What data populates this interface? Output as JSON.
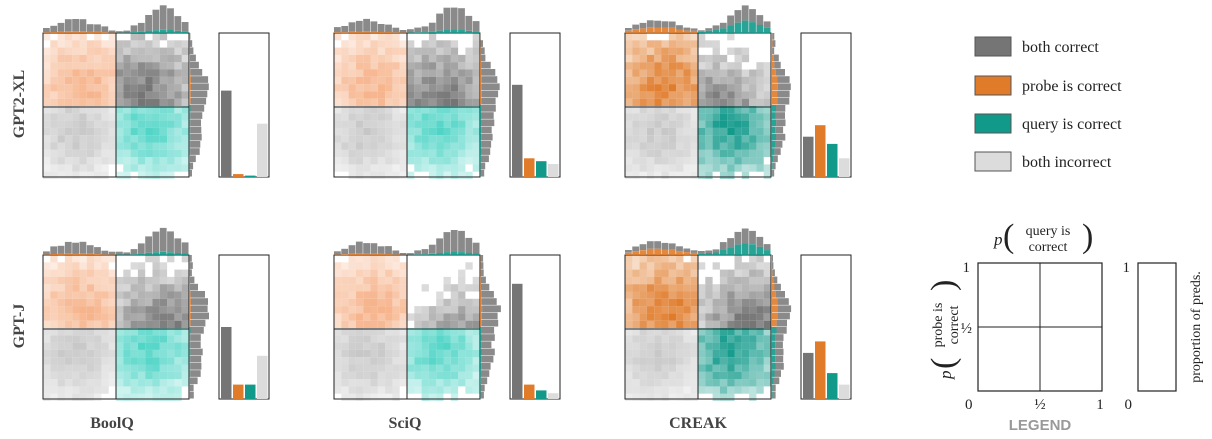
{
  "colors": {
    "both_correct": "#757575",
    "probe_correct": "#e07b2a",
    "query_correct": "#11998a",
    "both_incorrect": "#dcdcdc",
    "probe_light": "#f6b48c",
    "query_light": "#4fd4c6",
    "gray_light": "#c6c6c6"
  },
  "legend": {
    "items": [
      {
        "label": "both correct",
        "color": "#757575"
      },
      {
        "label": "probe is correct",
        "color": "#e07b2a"
      },
      {
        "label": "query is correct",
        "color": "#11998a"
      },
      {
        "label": "both incorrect",
        "color": "#dcdcdc"
      }
    ],
    "title": "LEGEND",
    "xaxis_label_p": "p",
    "xaxis_label_line1": "query is",
    "xaxis_label_line2": "correct",
    "yaxis_label_p": "p",
    "yaxis_label_line1": "probe is",
    "yaxis_label_line2": "correct",
    "bar_axis_label": "proportion of preds.",
    "tick_0_x": "0",
    "tick_half_x": "½",
    "tick_1_x": "1",
    "tick_half_y": "½",
    "tick_1_y": "1",
    "bar_tick_0": "0",
    "bar_tick_1": "1"
  },
  "chart_data": [
    {
      "type": "bar",
      "row": "GPT2-XL",
      "dataset": "BoolQ",
      "categories": [
        "both correct",
        "probe is correct",
        "query is correct",
        "both incorrect"
      ],
      "values": [
        0.6,
        0.02,
        0.01,
        0.37
      ],
      "ylim": [
        0,
        1
      ]
    },
    {
      "type": "bar",
      "row": "GPT2-XL",
      "dataset": "SciQ",
      "categories": [
        "both correct",
        "probe is correct",
        "query is correct",
        "both incorrect"
      ],
      "values": [
        0.64,
        0.13,
        0.11,
        0.09
      ],
      "ylim": [
        0,
        1
      ]
    },
    {
      "type": "bar",
      "row": "GPT2-XL",
      "dataset": "CREAK",
      "categories": [
        "both correct",
        "probe is correct",
        "query is correct",
        "both incorrect"
      ],
      "values": [
        0.28,
        0.36,
        0.23,
        0.13
      ],
      "ylim": [
        0,
        1
      ]
    },
    {
      "type": "bar",
      "row": "GPT-J",
      "dataset": "BoolQ",
      "categories": [
        "both correct",
        "probe is correct",
        "query is correct",
        "both incorrect"
      ],
      "values": [
        0.5,
        0.1,
        0.1,
        0.3
      ],
      "ylim": [
        0,
        1
      ]
    },
    {
      "type": "bar",
      "row": "GPT-J",
      "dataset": "SciQ",
      "categories": [
        "both correct",
        "probe is correct",
        "query is correct",
        "both incorrect"
      ],
      "values": [
        0.8,
        0.1,
        0.06,
        0.04
      ],
      "ylim": [
        0,
        1
      ]
    },
    {
      "type": "bar",
      "row": "GPT-J",
      "dataset": "CREAK",
      "categories": [
        "both correct",
        "probe is correct",
        "query is correct",
        "both incorrect"
      ],
      "values": [
        0.32,
        0.4,
        0.18,
        0.1
      ],
      "ylim": [
        0,
        1
      ]
    }
  ],
  "row_labels": [
    "GPT2-XL",
    "GPT-J"
  ],
  "col_labels": [
    "BoolQ",
    "SciQ",
    "CREAK"
  ]
}
